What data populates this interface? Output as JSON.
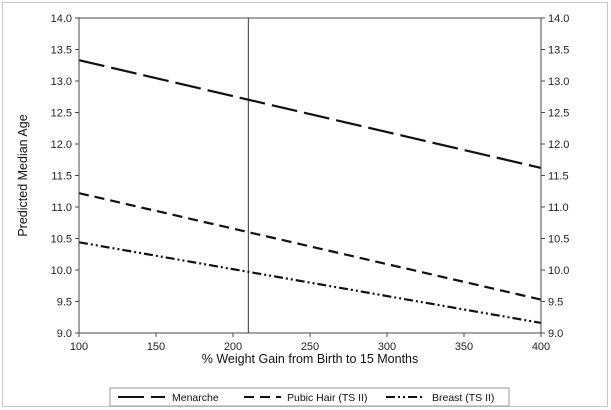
{
  "chart_data": {
    "type": "line",
    "title": "",
    "xlabel": "% Weight Gain from Birth to 15 Months",
    "ylabel": "Predicted Median Age",
    "xlim": [
      100,
      400
    ],
    "ylim": [
      9.0,
      14.0
    ],
    "x_ticks": [
      "100",
      "150",
      "200",
      "250",
      "300",
      "350",
      "400"
    ],
    "y_ticks": [
      "9.0",
      "9.5",
      "10.0",
      "10.5",
      "11.0",
      "11.5",
      "12.0",
      "12.5",
      "13.0",
      "13.5",
      "14.0"
    ],
    "reference_line_x": 210,
    "grid": false,
    "legend_position": "bottom",
    "series": [
      {
        "name": "Menarche",
        "x": [
          100,
          400
        ],
        "values": [
          13.33,
          11.62
        ],
        "dash": "long-dash",
        "color": "#111111"
      },
      {
        "name": "Pubic Hair (TS II)",
        "x": [
          100,
          400
        ],
        "values": [
          11.22,
          9.53
        ],
        "dash": "dash",
        "color": "#111111"
      },
      {
        "name": "Breast (TS II)",
        "x": [
          100,
          400
        ],
        "values": [
          10.44,
          9.16
        ],
        "dash": "dash-dot-dot",
        "color": "#111111"
      }
    ]
  }
}
